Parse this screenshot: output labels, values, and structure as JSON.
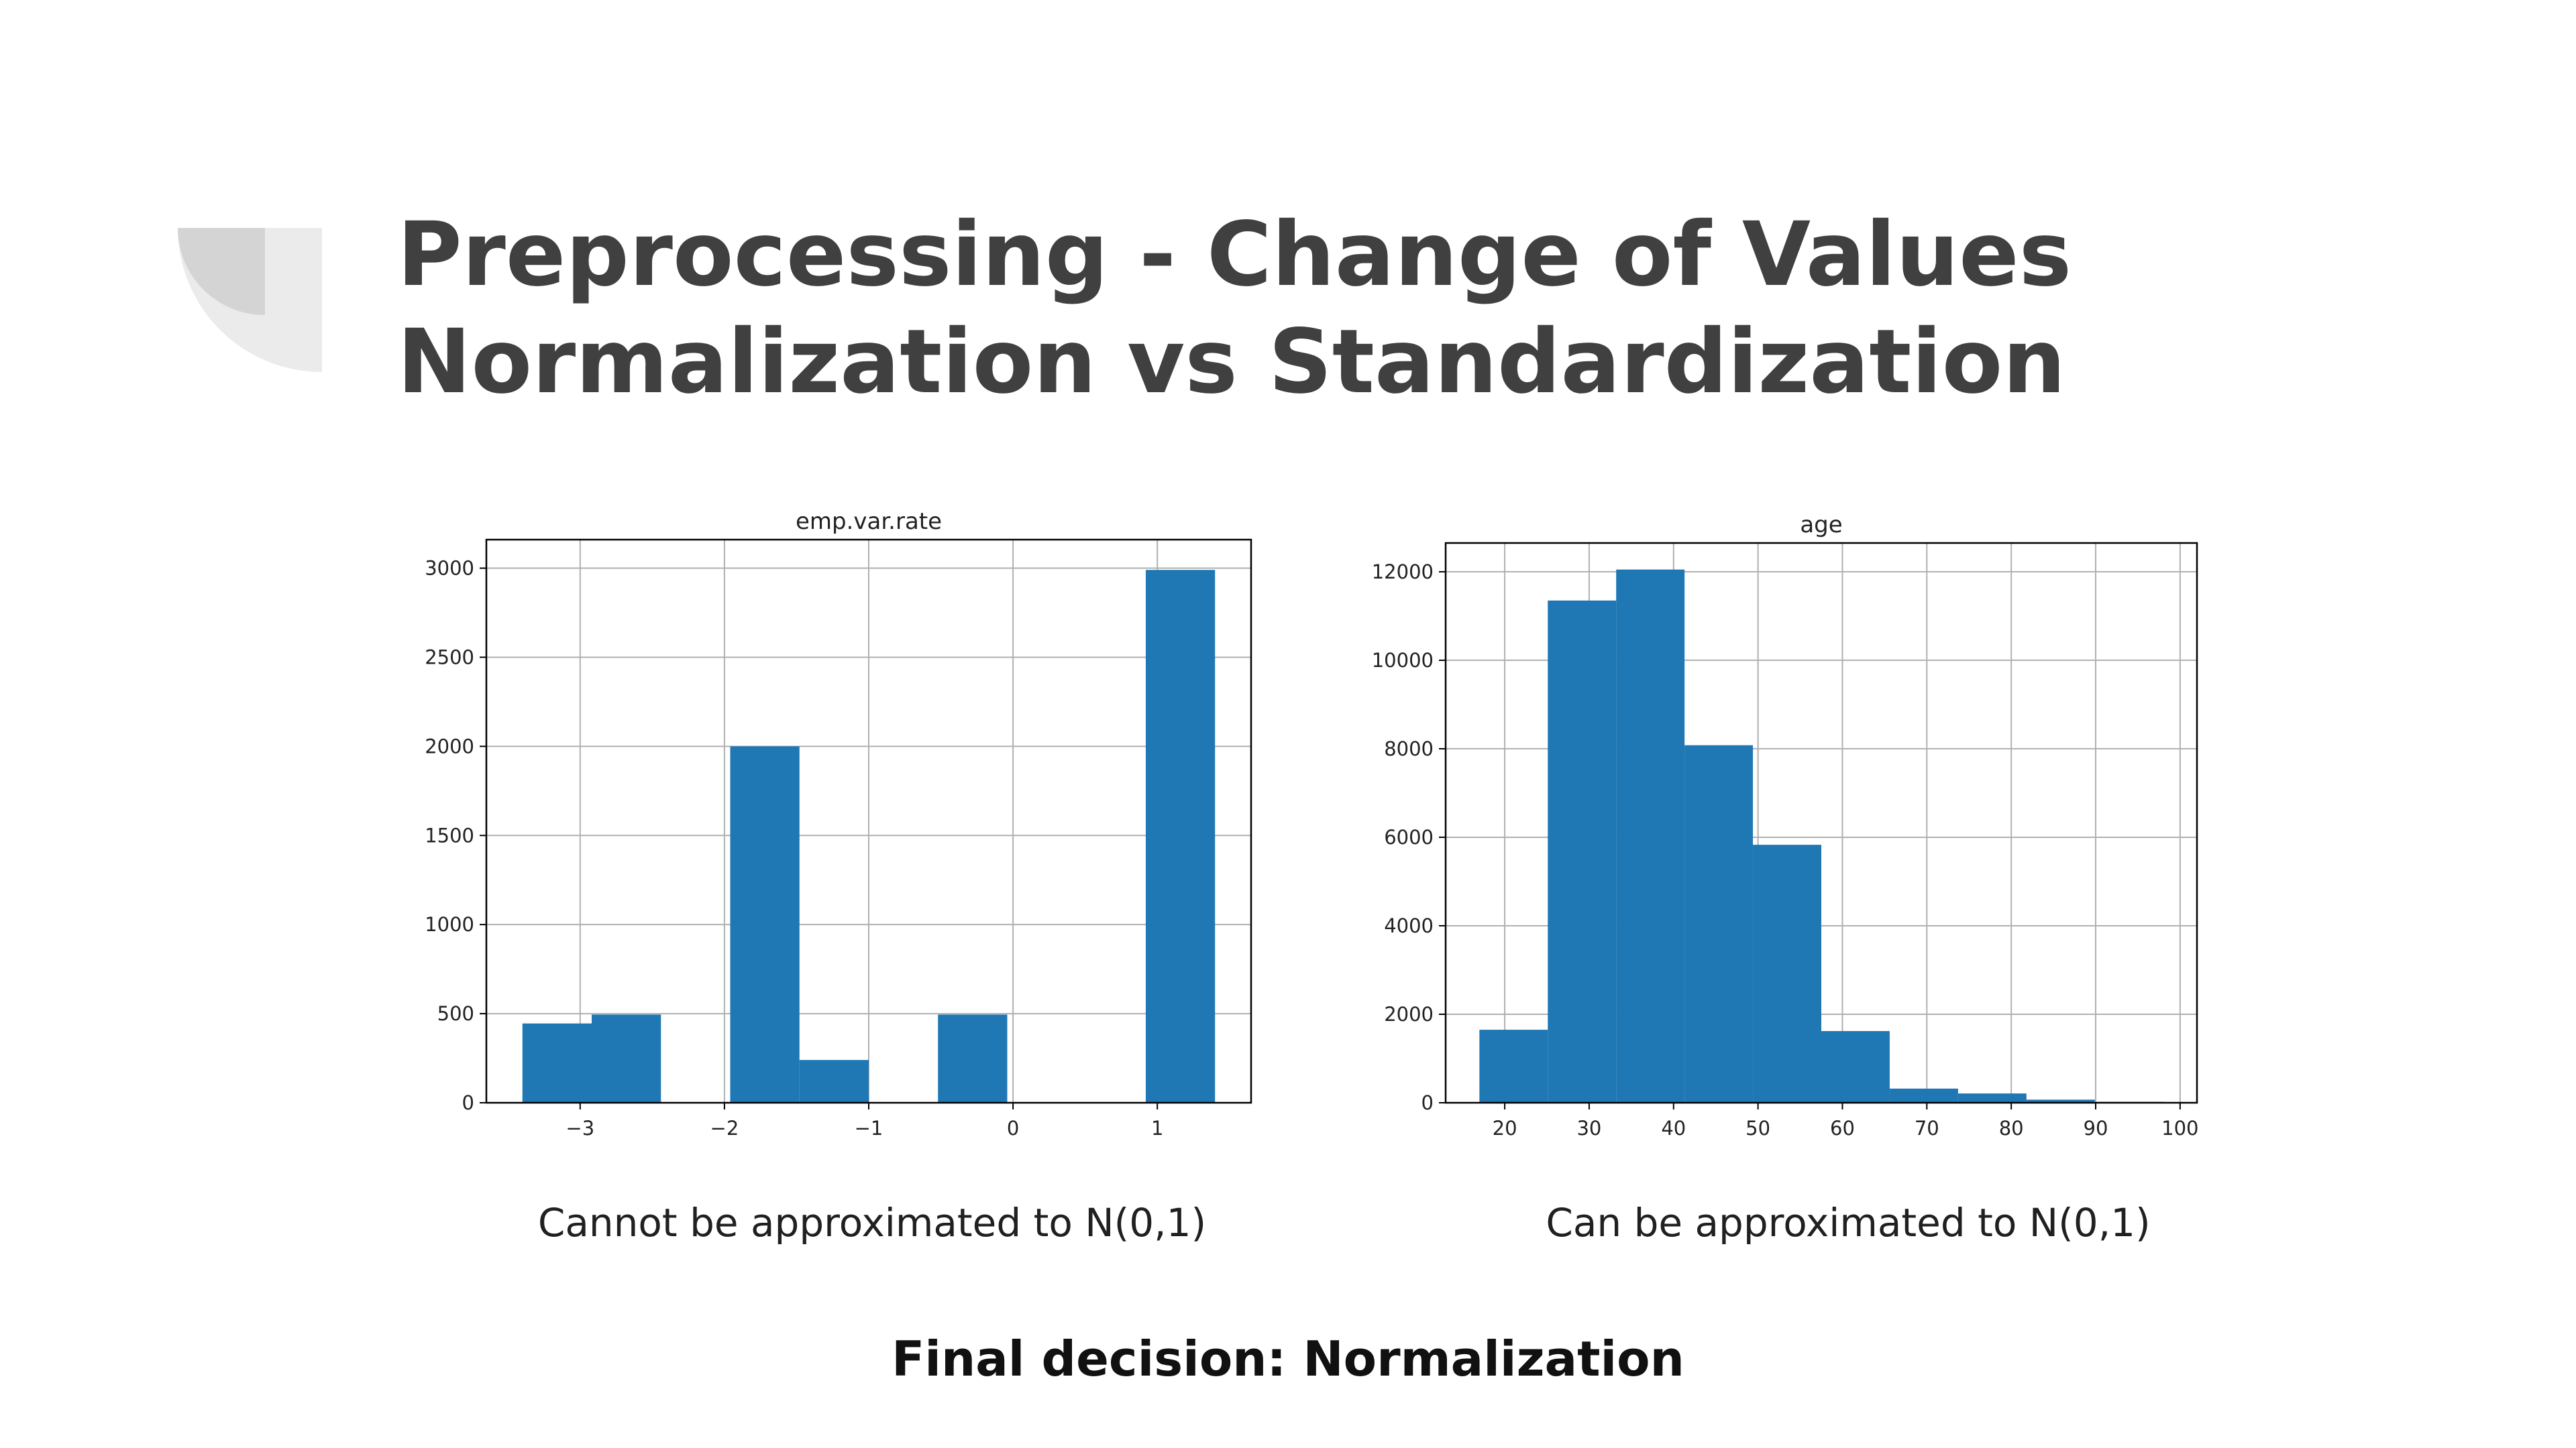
{
  "slide": {
    "title_line1": "Preprocessing - Change of Values",
    "title_line2": "Normalization vs Standardization",
    "caption_left": "Cannot be approximated to N(0,1)",
    "caption_right": "Can be approximated to N(0,1)",
    "final_decision": "Final decision: Normalization"
  },
  "colors": {
    "bar": "#1f77b4",
    "grid": "#b0b0b0",
    "axis": "#000000",
    "title_text": "#404040",
    "decoration_outer": "#ebebeb",
    "decoration_inner": "#d4d4d4"
  },
  "chart_data": [
    {
      "type": "bar",
      "title": "emp.var.rate",
      "xlabel": "",
      "ylabel": "",
      "xlim": [
        -3.65,
        1.65
      ],
      "ylim": [
        0,
        3160
      ],
      "xticks": [
        -3,
        -2,
        -1,
        0,
        1
      ],
      "xtick_labels": [
        "−3",
        "−2",
        "−1",
        "0",
        "1"
      ],
      "yticks": [
        0,
        500,
        1000,
        1500,
        2000,
        2500,
        3000
      ],
      "ytick_labels": [
        "0",
        "500",
        "1000",
        "1500",
        "2000",
        "2500",
        "3000"
      ],
      "bins": [
        {
          "x0": -3.4,
          "x1": -2.92,
          "value": 445
        },
        {
          "x0": -2.92,
          "x1": -2.44,
          "value": 495
        },
        {
          "x0": -2.44,
          "x1": -1.96,
          "value": 0
        },
        {
          "x0": -1.96,
          "x1": -1.48,
          "value": 2000
        },
        {
          "x0": -1.48,
          "x1": -1.0,
          "value": 240
        },
        {
          "x0": -1.0,
          "x1": -0.52,
          "value": 0
        },
        {
          "x0": -0.52,
          "x1": -0.04,
          "value": 495
        },
        {
          "x0": -0.04,
          "x1": 0.44,
          "value": 0
        },
        {
          "x0": 0.44,
          "x1": 0.92,
          "value": 0
        },
        {
          "x0": 0.92,
          "x1": 1.4,
          "value": 2990
        }
      ],
      "grid": true
    },
    {
      "type": "bar",
      "title": "age",
      "xlabel": "",
      "ylabel": "",
      "xlim": [
        13.0,
        102.0
      ],
      "ylim": [
        0,
        12650
      ],
      "xticks": [
        20,
        30,
        40,
        50,
        60,
        70,
        80,
        90,
        100
      ],
      "xtick_labels": [
        "20",
        "30",
        "40",
        "50",
        "60",
        "70",
        "80",
        "90",
        "100"
      ],
      "yticks": [
        0,
        2000,
        4000,
        6000,
        8000,
        10000,
        12000
      ],
      "ytick_labels": [
        "0",
        "2000",
        "4000",
        "6000",
        "8000",
        "10000",
        "12000"
      ],
      "bins": [
        {
          "x0": 17.0,
          "x1": 25.1,
          "value": 1650
        },
        {
          "x0": 25.1,
          "x1": 33.2,
          "value": 11350
        },
        {
          "x0": 33.2,
          "x1": 41.3,
          "value": 12050
        },
        {
          "x0": 41.3,
          "x1": 49.4,
          "value": 8080
        },
        {
          "x0": 49.4,
          "x1": 57.5,
          "value": 5830
        },
        {
          "x0": 57.5,
          "x1": 65.6,
          "value": 1620
        },
        {
          "x0": 65.6,
          "x1": 73.7,
          "value": 320
        },
        {
          "x0": 73.7,
          "x1": 81.8,
          "value": 210
        },
        {
          "x0": 81.8,
          "x1": 89.9,
          "value": 70
        },
        {
          "x0": 89.9,
          "x1": 98.0,
          "value": 20
        }
      ],
      "grid": true
    }
  ]
}
